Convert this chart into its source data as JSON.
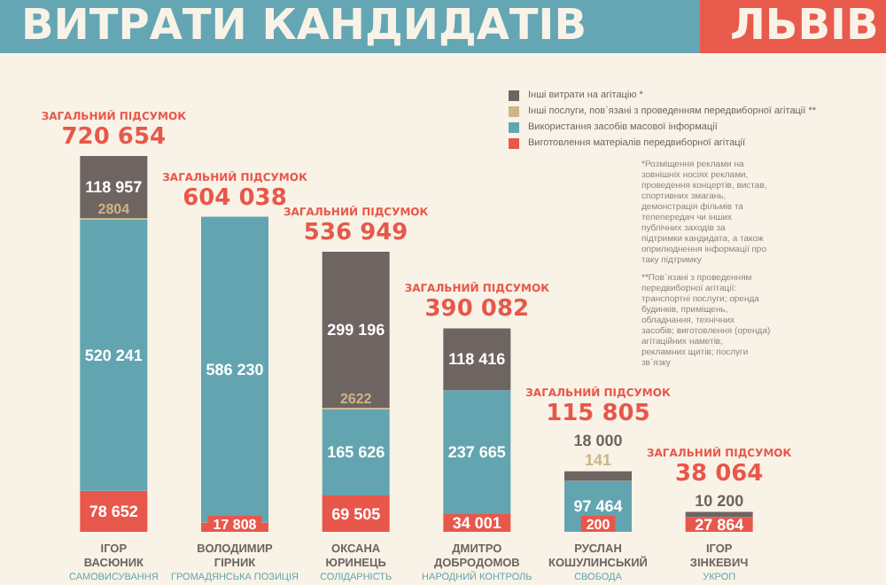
{
  "chart_data": {
    "type": "bar",
    "title": "ВИТРАТИ КАНДИДАТІВ",
    "subtitle": "ЛЬВІВ",
    "stacked": true,
    "grid": false,
    "legend": "top right",
    "categories": [
      "ІГОР\nВАСЮНИК\nСАМОВИСУВАННЯ",
      "ВОЛОДИМИР\nГІРНИК\nГРОМАДЯНСЬКА ПОЗИЦІЯ",
      "ОКСАНА\nЮРИНЕЦЬ\nСОЛІДАРНІСТЬ",
      "ДМИТРО\nДОБРОДОМОВ\nНАРОДНИЙ КОНТРОЛЬ",
      "РУСЛАН\nКОШУЛИНСЬКИЙ\nСВОБОДА",
      "ІГОР\nЗІНКЕВИЧ\nУКРОП"
    ],
    "series": [
      {
        "name": "Виготовлення матеріалів передвиборної агітації",
        "color": "#e8574b",
        "values": [
          78652,
          17808,
          69505,
          34001,
          200,
          27864
        ],
        "value_labels": [
          "78 652",
          "17 808",
          "69 505",
          "34 001",
          "200",
          "27 864"
        ]
      },
      {
        "name": "Використання засобів масової інформації",
        "color": "#62a5b0",
        "values": [
          520241,
          586230,
          165626,
          237665,
          97464,
          0
        ],
        "value_labels": [
          "520 241",
          "586 230",
          "165 626",
          "237 665",
          "97 464",
          null
        ]
      },
      {
        "name": "Інші послуги, пов`язані з проведенням передвиборної агітації **",
        "color": "#cdb489",
        "values": [
          2804,
          0,
          2622,
          0,
          141,
          0
        ],
        "value_labels": [
          "2804",
          null,
          "2622",
          null,
          "141",
          null
        ]
      },
      {
        "name": "Інші витрати на агітацію *",
        "color": "#6e6462",
        "values": [
          118957,
          0,
          299196,
          118416,
          18000,
          10200
        ],
        "value_labels": [
          "118 957",
          null,
          "299 196",
          "118 416",
          "18 000",
          "10 200"
        ]
      }
    ],
    "totals": [
      "ЗАГАЛЬНИЙ ПІДСУМОК\n720 654",
      "ЗАГАЛЬНИЙ ПІДСУМОК\n604 038",
      "ЗАГАЛЬНИЙ ПІДСУМОК\n536 949",
      "ЗАГАЛЬНИЙ ПІДСУМОК\n390 082",
      "ЗАГАЛЬНИЙ ПІДСУМОК\n115 805",
      "ЗАГАЛЬНИЙ ПІДСУМОК\n38 064"
    ],
    "annotations": [
      "*Розміщення реклами на зовнішніх носіях реклами, проведення концертів, вистав, спортивних змагань, демонстрація фільмів та телепередач чи інших публічних заходів за підтримки кандидата, а також оприлюднення інформації про таку підтримку",
      "**Пов`язані з проведенням передвиборної агітації: транспортні послуги; оренда будинків, приміщень, обладнання, технічних засобів; виготовлення (оренда) агітаційних наметів, рекламних щитів; послуги зв`язку"
    ]
  }
}
